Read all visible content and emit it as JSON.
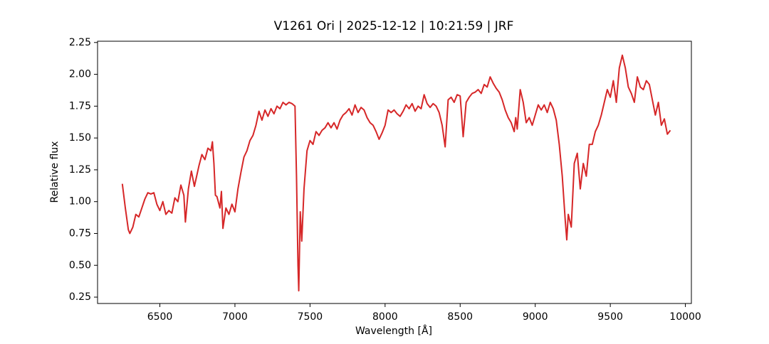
{
  "chart_data": {
    "type": "line",
    "title": "V1261 Ori | 2025-12-12 | 10:21:59 | JRF",
    "xlabel": "Wavelength [Å]",
    "ylabel": "Relative flux",
    "color": "#d62728",
    "xlim": [
      6085,
      10040
    ],
    "ylim": [
      0.2,
      2.26
    ],
    "xticks": [
      6500,
      7000,
      7500,
      8000,
      8500,
      9000,
      9500,
      10000
    ],
    "yticks": [
      0.25,
      {
        "value": 0.5,
        "label": "0.50"
      },
      0.75,
      {
        "value": 1.0,
        "label": "1.00"
      },
      1.25,
      {
        "value": 1.5,
        "label": "1.50"
      },
      1.75,
      {
        "value": 2.0,
        "label": "2.00"
      },
      2.25
    ],
    "x": [
      6250,
      6270,
      6290,
      6300,
      6320,
      6340,
      6360,
      6380,
      6400,
      6420,
      6440,
      6460,
      6480,
      6500,
      6520,
      6540,
      6560,
      6580,
      6600,
      6620,
      6640,
      6660,
      6670,
      6690,
      6710,
      6730,
      6760,
      6780,
      6800,
      6820,
      6840,
      6850,
      6860,
      6870,
      6880,
      6900,
      6910,
      6920,
      6940,
      6960,
      6980,
      7000,
      7020,
      7040,
      7060,
      7080,
      7100,
      7120,
      7140,
      7160,
      7180,
      7200,
      7220,
      7240,
      7260,
      7280,
      7300,
      7320,
      7340,
      7360,
      7380,
      7400,
      7410,
      7420,
      7425,
      7435,
      7445,
      7460,
      7480,
      7500,
      7520,
      7540,
      7560,
      7580,
      7600,
      7620,
      7640,
      7660,
      7680,
      7700,
      7720,
      7740,
      7760,
      7780,
      7800,
      7820,
      7840,
      7860,
      7880,
      7900,
      7920,
      7940,
      7960,
      7980,
      8000,
      8020,
      8040,
      8060,
      8080,
      8100,
      8120,
      8140,
      8160,
      8180,
      8200,
      8220,
      8240,
      8260,
      8280,
      8300,
      8320,
      8340,
      8360,
      8380,
      8400,
      8420,
      8440,
      8460,
      8480,
      8500,
      8520,
      8540,
      8560,
      8580,
      8600,
      8620,
      8640,
      8660,
      8680,
      8700,
      8720,
      8740,
      8760,
      8780,
      8800,
      8820,
      8840,
      8860,
      8870,
      8880,
      8900,
      8920,
      8940,
      8960,
      8980,
      9000,
      9020,
      9040,
      9060,
      9080,
      9100,
      9120,
      9140,
      9160,
      9180,
      9200,
      9210,
      9220,
      9240,
      9260,
      9280,
      9300,
      9320,
      9340,
      9360,
      9380,
      9400,
      9420,
      9440,
      9460,
      9480,
      9500,
      9520,
      9540,
      9560,
      9580,
      9600,
      9620,
      9640,
      9660,
      9680,
      9700,
      9720,
      9740,
      9760,
      9780,
      9800,
      9820,
      9840,
      9860,
      9880,
      9900
    ],
    "y": [
      1.14,
      0.95,
      0.78,
      0.75,
      0.8,
      0.9,
      0.88,
      0.95,
      1.02,
      1.07,
      1.06,
      1.07,
      0.98,
      0.93,
      1.0,
      0.9,
      0.93,
      0.91,
      1.03,
      1.0,
      1.13,
      1.05,
      0.84,
      1.1,
      1.24,
      1.12,
      1.28,
      1.37,
      1.33,
      1.42,
      1.4,
      1.47,
      1.3,
      1.05,
      1.04,
      0.95,
      1.08,
      0.79,
      0.95,
      0.9,
      0.98,
      0.92,
      1.1,
      1.23,
      1.35,
      1.4,
      1.48,
      1.52,
      1.6,
      1.71,
      1.64,
      1.72,
      1.67,
      1.73,
      1.69,
      1.75,
      1.73,
      1.78,
      1.76,
      1.78,
      1.77,
      1.75,
      1.2,
      0.5,
      0.3,
      0.92,
      0.69,
      1.1,
      1.4,
      1.48,
      1.45,
      1.55,
      1.52,
      1.56,
      1.58,
      1.62,
      1.58,
      1.62,
      1.57,
      1.64,
      1.68,
      1.7,
      1.73,
      1.68,
      1.76,
      1.7,
      1.74,
      1.72,
      1.66,
      1.62,
      1.6,
      1.55,
      1.49,
      1.54,
      1.6,
      1.72,
      1.7,
      1.72,
      1.69,
      1.67,
      1.71,
      1.76,
      1.73,
      1.77,
      1.71,
      1.75,
      1.73,
      1.84,
      1.77,
      1.74,
      1.77,
      1.75,
      1.7,
      1.6,
      1.43,
      1.8,
      1.82,
      1.78,
      1.84,
      1.83,
      1.51,
      1.78,
      1.82,
      1.85,
      1.86,
      1.88,
      1.85,
      1.92,
      1.9,
      1.98,
      1.93,
      1.89,
      1.86,
      1.8,
      1.72,
      1.66,
      1.62,
      1.55,
      1.66,
      1.57,
      1.88,
      1.78,
      1.62,
      1.66,
      1.6,
      1.68,
      1.76,
      1.72,
      1.76,
      1.7,
      1.78,
      1.73,
      1.64,
      1.45,
      1.2,
      0.85,
      0.7,
      0.9,
      0.8,
      1.3,
      1.38,
      1.1,
      1.3,
      1.2,
      1.45,
      1.45,
      1.55,
      1.6,
      1.68,
      1.78,
      1.88,
      1.82,
      1.95,
      1.78,
      2.05,
      2.15,
      2.05,
      1.9,
      1.85,
      1.78,
      1.98,
      1.9,
      1.88,
      1.95,
      1.92,
      1.8,
      1.68,
      1.78,
      1.6,
      1.65,
      1.53,
      1.56
    ]
  }
}
